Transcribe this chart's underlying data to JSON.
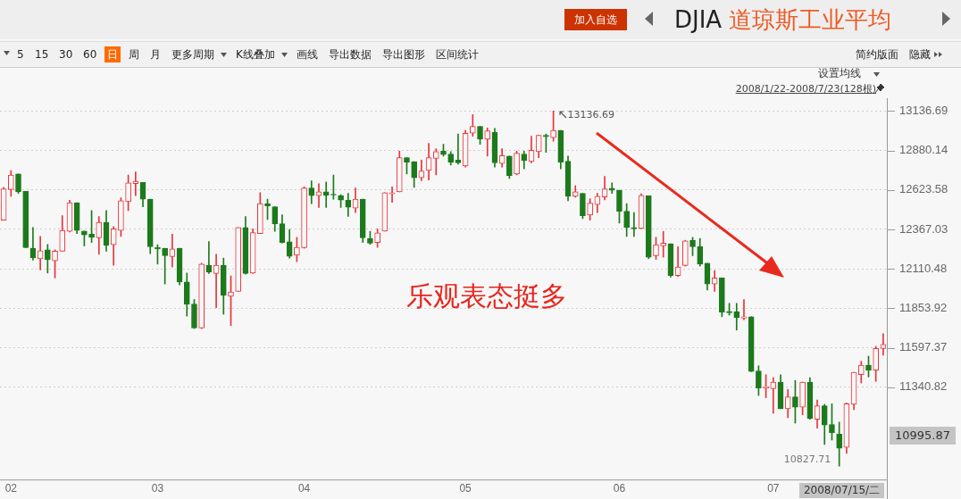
{
  "chart_data": {
    "type": "candlestick",
    "title": "DJIA 道琼斯工业平均",
    "subtitle": "2008/1/22-2008/7/23(128根)",
    "categories": [
      null,
      "02",
      null,
      null,
      null,
      null,
      null,
      null,
      null,
      null,
      null,
      null,
      null,
      null,
      null,
      null,
      null,
      null,
      null,
      null,
      null,
      "03",
      null,
      null,
      null,
      null,
      null,
      null,
      null,
      null,
      null,
      null,
      null,
      null,
      null,
      null,
      null,
      null,
      null,
      null,
      null,
      "04",
      null,
      null,
      null,
      null,
      null,
      null,
      null,
      null,
      null,
      null,
      null,
      null,
      null,
      null,
      null,
      null,
      null,
      null,
      null,
      null,
      null,
      "05",
      null,
      null,
      null,
      null,
      null,
      null,
      null,
      null,
      null,
      null,
      null,
      null,
      null,
      null,
      null,
      null,
      null,
      null,
      null,
      null,
      "06",
      null,
      null,
      null,
      null,
      null,
      null,
      null,
      null,
      null,
      null,
      null,
      null,
      null,
      null,
      null,
      null,
      null,
      null,
      null,
      null,
      "07",
      null,
      null,
      null,
      null,
      null,
      null,
      null,
      null,
      null,
      null,
      null,
      null,
      null,
      null,
      null
    ],
    "ohlc": [
      [
        12427,
        12640,
        12427,
        12630
      ],
      [
        12625,
        12750,
        12582,
        12721
      ],
      [
        12727,
        12727,
        12601,
        12611
      ],
      [
        12615,
        12615,
        12248,
        12248
      ],
      [
        12244,
        12379,
        12167,
        12182
      ],
      [
        12176,
        12321,
        12103,
        12228
      ],
      [
        12234,
        12269,
        12083,
        12170
      ],
      [
        12163,
        12234,
        12051,
        12225
      ],
      [
        12225,
        12456,
        12225,
        12360
      ],
      [
        12354,
        12557,
        12350,
        12540
      ],
      [
        12540,
        12540,
        12340,
        12360
      ],
      [
        12356,
        12356,
        12259,
        12331
      ],
      [
        12335,
        12489,
        12282,
        12315
      ],
      [
        12312,
        12451,
        12205,
        12412
      ],
      [
        12412,
        12489,
        12225,
        12263
      ],
      [
        12267,
        12385,
        12134,
        12370
      ],
      [
        12360,
        12572,
        12321,
        12553
      ],
      [
        12547,
        12721,
        12489,
        12669
      ],
      [
        12665,
        12741,
        12586,
        12679
      ],
      [
        12673,
        12673,
        12514,
        12563
      ],
      [
        12563,
        12563,
        12209,
        12254
      ],
      [
        12248,
        12267,
        12141,
        12240
      ],
      [
        12244,
        12244,
        12012,
        12196
      ],
      [
        12190,
        12335,
        12122,
        12240
      ],
      [
        12244,
        12244,
        12006,
        12025
      ],
      [
        12025,
        12083,
        11803,
        11880
      ],
      [
        11882,
        11911,
        11722,
        11726
      ],
      [
        11726,
        12147,
        11722,
        12141
      ],
      [
        12134,
        12288,
        12080,
        12089
      ],
      [
        12080,
        12205,
        11857,
        12134
      ],
      [
        12134,
        12180,
        11815,
        11938
      ],
      [
        11931,
        12064,
        11741,
        11960
      ],
      [
        11964,
        12379,
        11964,
        12379
      ],
      [
        12379,
        12451,
        12076,
        12080
      ],
      [
        12083,
        12370,
        12080,
        12346
      ],
      [
        12340,
        12605,
        12340,
        12534
      ],
      [
        12534,
        12563,
        12431,
        12520
      ],
      [
        12514,
        12514,
        12354,
        12402
      ],
      [
        12404,
        12462,
        12279,
        12282
      ],
      [
        12286,
        12366,
        12180,
        12192
      ],
      [
        12199,
        12315,
        12157,
        12250
      ],
      [
        12248,
        12644,
        12244,
        12636
      ],
      [
        12636,
        12683,
        12534,
        12586
      ],
      [
        12586,
        12663,
        12509,
        12611
      ],
      [
        12611,
        12675,
        12509,
        12588
      ],
      [
        12596,
        12721,
        12563,
        12590
      ],
      [
        12586,
        12592,
        12509,
        12557
      ],
      [
        12557,
        12601,
        12451,
        12511
      ],
      [
        12505,
        12636,
        12476,
        12563
      ],
      [
        12563,
        12563,
        12282,
        12312
      ],
      [
        12308,
        12354,
        12269,
        12277
      ],
      [
        12282,
        12370,
        12250,
        12344
      ],
      [
        12356,
        12605,
        12356,
        12605
      ],
      [
        12598,
        12644,
        12543,
        12605
      ],
      [
        12611,
        12876,
        12611,
        12833
      ],
      [
        12833,
        12833,
        12727,
        12804
      ],
      [
        12808,
        12808,
        12640,
        12702
      ],
      [
        12702,
        12818,
        12683,
        12746
      ],
      [
        12750,
        12926,
        12688,
        12833
      ],
      [
        12828,
        12891,
        12721,
        12872
      ],
      [
        12876,
        12920,
        12843,
        12853
      ],
      [
        12857,
        12872,
        12785,
        12804
      ],
      [
        12818,
        12988,
        12791,
        12799
      ],
      [
        12779,
        13011,
        12772,
        12992
      ],
      [
        12992,
        13114,
        12973,
        13036
      ],
      [
        13036,
        13036,
        12920,
        12953
      ],
      [
        12953,
        13027,
        12843,
        13007
      ],
      [
        12998,
        13023,
        12772,
        12799
      ],
      [
        12795,
        12891,
        12772,
        12847
      ],
      [
        12843,
        12843,
        12698,
        12717
      ],
      [
        12727,
        12876,
        12721,
        12862
      ],
      [
        12857,
        12876,
        12760,
        12814
      ],
      [
        12808,
        12973,
        12799,
        12882
      ],
      [
        12872,
        12978,
        12833,
        12978
      ],
      [
        12978,
        12988,
        12868,
        12969
      ],
      [
        12963,
        13136.69,
        12940,
        13011
      ],
      [
        13011,
        13011,
        12760,
        12804
      ],
      [
        12810,
        12843,
        12553,
        12582
      ],
      [
        12582,
        12650,
        12576,
        12611
      ],
      [
        12601,
        12601,
        12437,
        12456
      ],
      [
        12460,
        12567,
        12427,
        12538
      ],
      [
        12528,
        12601,
        12476,
        12582
      ],
      [
        12578,
        12712,
        12559,
        12630
      ],
      [
        12634,
        12669,
        12601,
        12621
      ],
      [
        12621,
        12621,
        12408,
        12485
      ],
      [
        12485,
        12534,
        12321,
        12379
      ],
      [
        12379,
        12476,
        12321,
        12370
      ],
      [
        12373,
        12598,
        12370,
        12588
      ],
      [
        12586,
        12586,
        12176,
        12186
      ],
      [
        12196,
        12315,
        12172,
        12267
      ],
      [
        12259,
        12354,
        12186,
        12277
      ],
      [
        12273,
        12273,
        12056,
        12066
      ],
      [
        12066,
        12254,
        12060,
        12122
      ],
      [
        12132,
        12296,
        12128,
        12292
      ],
      [
        12296,
        12315,
        12196,
        12254
      ],
      [
        12254,
        12308,
        12128,
        12141
      ],
      [
        12147,
        12147,
        11973,
        12012
      ],
      [
        12012,
        12099,
        11964,
        12051
      ],
      [
        12051,
        12051,
        11799,
        11828
      ],
      [
        11834,
        11886,
        11809,
        11824
      ],
      [
        11832,
        11886,
        11712,
        11793
      ],
      [
        11790,
        11911,
        11780,
        11799
      ],
      [
        11799,
        11799,
        11442,
        11442
      ],
      [
        11446,
        11480,
        11287,
        11335
      ],
      [
        11335,
        11422,
        11272,
        11345
      ],
      [
        11331,
        11403,
        11171,
        11374
      ],
      [
        11374,
        11422,
        11200,
        11200
      ],
      [
        11200,
        11326,
        11142,
        11277
      ],
      [
        11277,
        11384,
        11107,
        11210
      ],
      [
        11210,
        11374,
        11161,
        11374
      ],
      [
        11374,
        11403,
        11132,
        11136
      ],
      [
        11132,
        11258,
        11074,
        11219
      ],
      [
        11219,
        11229,
        10968,
        11094
      ],
      [
        11098,
        11233,
        10997,
        11045
      ],
      [
        11036,
        11113,
        10827.71,
        10943
      ],
      [
        10949,
        11239,
        10910,
        11233
      ],
      [
        11229,
        11438,
        11194,
        11438
      ],
      [
        11422,
        11509,
        11368,
        11484
      ],
      [
        11484,
        11542,
        11407,
        11451
      ],
      [
        11451,
        11606,
        11378,
        11592
      ],
      [
        11592,
        11689,
        11548,
        11619
      ]
    ],
    "ylim": [
      10740,
      13220
    ],
    "yticks": [
      11340.82,
      11597.37,
      11853.92,
      12110.48,
      12367.03,
      12623.58,
      12880.14,
      13136.69
    ],
    "grid": "y",
    "legend": false,
    "annotations": [
      "加入自选",
      "5",
      "15",
      "30",
      "60",
      "日",
      "周",
      "月",
      "更多周期",
      "K线叠加",
      "画线",
      "导出数据",
      "导出图形",
      "区间统计",
      "简约版面",
      "隐藏",
      "设置均线",
      "13136.69",
      "乐观表态挺多",
      "10827.71",
      "10995.87",
      "2008/07/15/二"
    ]
  }
}
